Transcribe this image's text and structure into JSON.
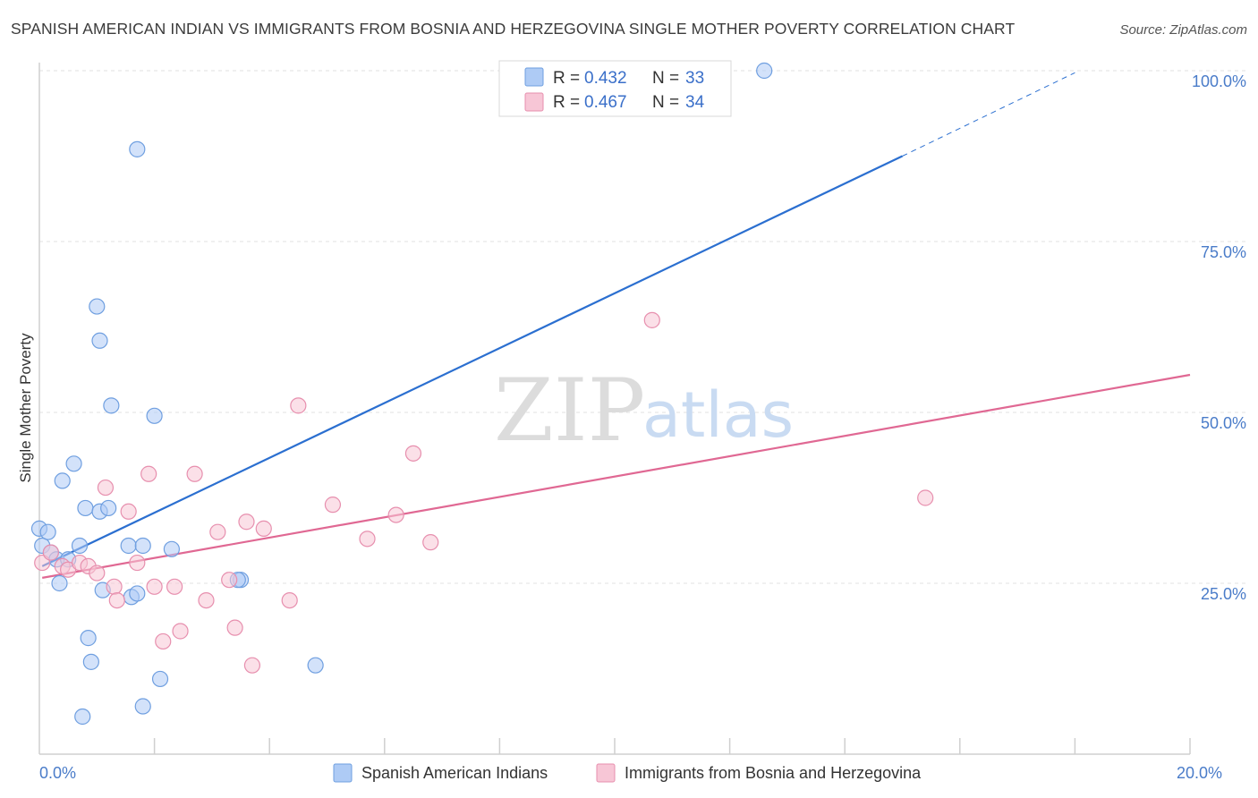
{
  "title": "SPANISH AMERICAN INDIAN VS IMMIGRANTS FROM BOSNIA AND HERZEGOVINA SINGLE MOTHER POVERTY CORRELATION CHART",
  "source": "Source: ZipAtlas.com",
  "watermark": {
    "zip": "ZIP",
    "atlas": "atlas"
  },
  "legend": {
    "r_label": "R =",
    "n_label": "N =",
    "rows": [
      {
        "r": "0.432",
        "n": "33",
        "color": "#aecbf5",
        "border": "#6f9fe0"
      },
      {
        "r": "0.467",
        "n": "34",
        "color": "#f7c6d6",
        "border": "#e78fae"
      }
    ]
  },
  "chart_data": {
    "type": "scatter",
    "ylabel": "Single Mother Poverty",
    "xlim": [
      0,
      20
    ],
    "ylim": [
      0,
      104
    ],
    "x_tick_labels": [
      {
        "value": 0,
        "label": "0.0%"
      },
      {
        "value": 20,
        "label": "20.0%"
      }
    ],
    "y_tick_labels": [
      {
        "value": 25,
        "label": "25.0%"
      },
      {
        "value": 50,
        "label": "50.0%"
      },
      {
        "value": 75,
        "label": "75.0%"
      },
      {
        "value": 100,
        "label": "100.0%"
      }
    ],
    "x_minor_ticks": [
      2,
      4,
      6,
      8,
      10,
      12,
      14,
      16,
      18,
      20
    ],
    "grid": true,
    "series": [
      {
        "name": "Spanish American Indians",
        "color": "#aecbf5",
        "stroke": "#6f9fe0",
        "line_color": "#2b6fd0",
        "points": [
          [
            0.0,
            33.0
          ],
          [
            0.05,
            30.5
          ],
          [
            0.15,
            32.5
          ],
          [
            0.2,
            29.5
          ],
          [
            0.3,
            28.5
          ],
          [
            0.35,
            25.0
          ],
          [
            0.4,
            40.0
          ],
          [
            0.5,
            28.5
          ],
          [
            0.6,
            42.5
          ],
          [
            0.7,
            30.5
          ],
          [
            0.8,
            36.0
          ],
          [
            0.85,
            17.0
          ],
          [
            0.9,
            13.5
          ],
          [
            0.75,
            5.5
          ],
          [
            1.0,
            65.5
          ],
          [
            1.05,
            60.5
          ],
          [
            1.05,
            35.5
          ],
          [
            1.1,
            24.0
          ],
          [
            1.2,
            36.0
          ],
          [
            1.25,
            51.0
          ],
          [
            1.55,
            30.5
          ],
          [
            1.6,
            23.0
          ],
          [
            1.7,
            23.5
          ],
          [
            1.8,
            30.5
          ],
          [
            1.8,
            7.0
          ],
          [
            1.7,
            88.5
          ],
          [
            2.0,
            49.5
          ],
          [
            2.1,
            11.0
          ],
          [
            2.3,
            30.0
          ],
          [
            3.5,
            25.5
          ],
          [
            3.45,
            25.5
          ],
          [
            4.8,
            13.0
          ],
          [
            12.6,
            100.0
          ]
        ],
        "trend": {
          "x1": 0.05,
          "y1": 27.5,
          "x2": 15.0,
          "y2": 87.5,
          "dash_x2": 18.0,
          "dash_y2": 99.7
        }
      },
      {
        "name": "Immigrants from Bosnia and Herzegovina",
        "color": "#f7c6d6",
        "stroke": "#e78fae",
        "line_color": "#e06893",
        "points": [
          [
            0.05,
            28.0
          ],
          [
            0.2,
            29.5
          ],
          [
            0.4,
            27.5
          ],
          [
            0.5,
            27.0
          ],
          [
            0.7,
            28.0
          ],
          [
            0.85,
            27.5
          ],
          [
            1.0,
            26.5
          ],
          [
            1.15,
            39.0
          ],
          [
            1.3,
            24.5
          ],
          [
            1.35,
            22.5
          ],
          [
            1.55,
            35.5
          ],
          [
            1.7,
            28.0
          ],
          [
            1.9,
            41.0
          ],
          [
            2.0,
            24.5
          ],
          [
            2.15,
            16.5
          ],
          [
            2.35,
            24.5
          ],
          [
            2.45,
            18.0
          ],
          [
            2.7,
            41.0
          ],
          [
            2.9,
            22.5
          ],
          [
            3.1,
            32.5
          ],
          [
            3.3,
            25.5
          ],
          [
            3.4,
            18.5
          ],
          [
            3.6,
            34.0
          ],
          [
            3.7,
            13.0
          ],
          [
            3.9,
            33.0
          ],
          [
            4.35,
            22.5
          ],
          [
            4.5,
            51.0
          ],
          [
            5.1,
            36.5
          ],
          [
            5.7,
            31.5
          ],
          [
            6.2,
            35.0
          ],
          [
            6.5,
            44.0
          ],
          [
            6.8,
            31.0
          ],
          [
            10.65,
            63.5
          ],
          [
            15.4,
            37.5
          ]
        ],
        "trend": {
          "x1": 0.05,
          "y1": 25.8,
          "x2": 20.0,
          "y2": 55.5
        }
      }
    ]
  }
}
